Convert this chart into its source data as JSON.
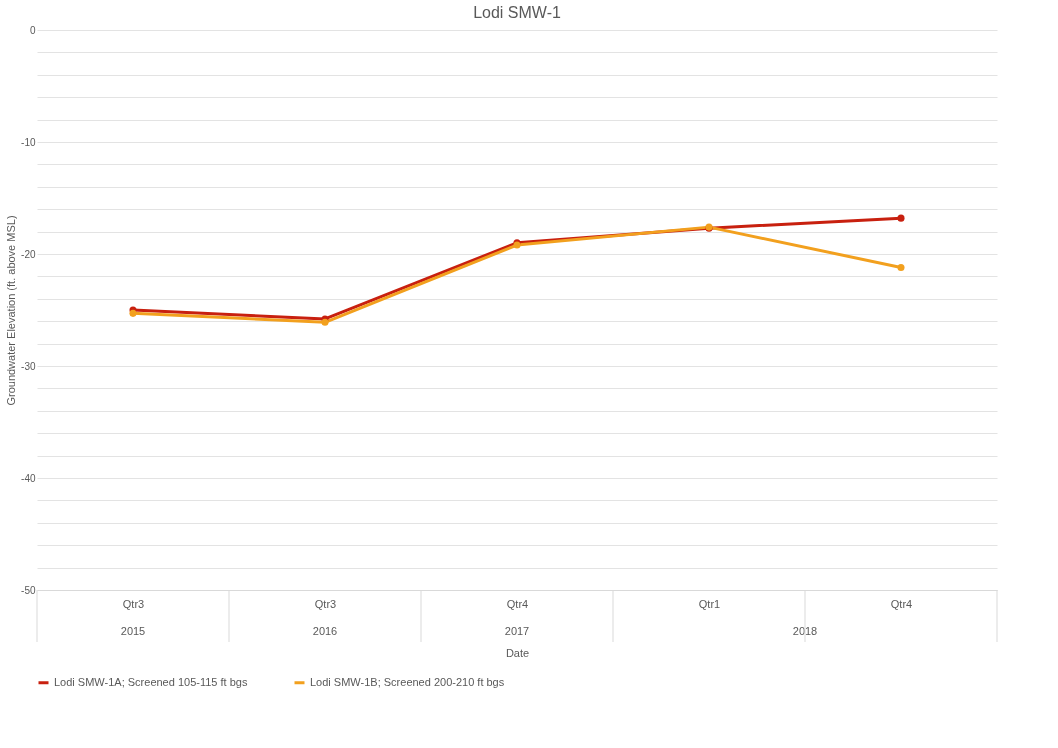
{
  "chart_data": {
    "type": "line",
    "title": "Lodi SMW-1",
    "xlabel": "Date",
    "ylabel": "Groundwater Elevation (ft. above MSL)",
    "categories": [
      "Qtr3",
      "Qtr3",
      "Qtr4",
      "Qtr1",
      "Qtr4"
    ],
    "annotations": [
      "2015",
      "2016",
      "2017",
      "2018"
    ],
    "series": [
      {
        "name": "Lodi SMW-1A; Screened 105-115 ft bgs",
        "color": "#c8200f",
        "values": [
          -25.0,
          -25.8,
          -19.0,
          -17.7,
          -16.8
        ]
      },
      {
        "name": "Lodi SMW-1B; Screened 200-210 ft bgs",
        "color": "#f2a01e",
        "values": [
          -25.3,
          -26.1,
          -19.2,
          -17.6,
          -21.2
        ]
      }
    ],
    "ylim": [
      -50,
      0
    ],
    "yticks": [
      -50,
      {
        "value": -48,
        "label": null
      },
      {
        "value": -46,
        "label": null
      },
      {
        "value": -44,
        "label": null
      },
      {
        "value": -42,
        "label": null
      },
      -40,
      {
        "value": -38,
        "label": null
      },
      {
        "value": -36,
        "label": null
      },
      {
        "value": -34,
        "label": null
      },
      {
        "value": -32,
        "label": null
      },
      -30,
      {
        "value": -28,
        "label": null
      },
      {
        "value": -26,
        "label": null
      },
      {
        "value": -24,
        "label": null
      },
      {
        "value": -22,
        "label": null
      },
      -20,
      {
        "value": -18,
        "label": null
      },
      {
        "value": -16,
        "label": null
      },
      {
        "value": -14,
        "label": null
      },
      {
        "value": -12,
        "label": null
      },
      -10,
      {
        "value": -8,
        "label": null
      },
      {
        "value": -6,
        "label": null
      },
      {
        "value": -4,
        "label": null
      },
      {
        "value": -2,
        "label": null
      },
      0
    ],
    "grid": "y",
    "legend": "bottom",
    "marker": "circle",
    "line_style": "solid"
  }
}
